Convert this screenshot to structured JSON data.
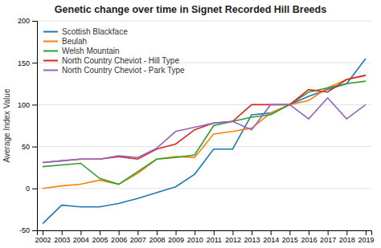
{
  "chart_data": {
    "type": "line",
    "title": "Genetic change over time in Signet Recorded Hill Breeds",
    "ylabel": "Average Index Value",
    "x": [
      2002,
      2003,
      2004,
      2005,
      2006,
      2007,
      2008,
      2009,
      2010,
      2011,
      2012,
      2013,
      2014,
      2015,
      2016,
      2017,
      2018,
      2019
    ],
    "series": [
      {
        "name": "Scottish Blackface",
        "values": [
          -42,
          -20,
          -22,
          -22,
          -18,
          -12,
          -5,
          2,
          17,
          47,
          47,
          88,
          90,
          100,
          110,
          118,
          125,
          155
        ]
      },
      {
        "name": "Beulah",
        "values": [
          0,
          3,
          5,
          10,
          5,
          18,
          35,
          38,
          37,
          65,
          68,
          72,
          90,
          100,
          105,
          120,
          130,
          135
        ]
      },
      {
        "name": "Welsh Mountain",
        "values": [
          26,
          28,
          30,
          12,
          5,
          20,
          35,
          37,
          40,
          75,
          80,
          85,
          88,
          100,
          115,
          120,
          125,
          128
        ]
      },
      {
        "name": "North Country Cheviot - Hill Type",
        "values": [
          31,
          33,
          35,
          35,
          38,
          35,
          47,
          53,
          70,
          78,
          80,
          100,
          100,
          100,
          118,
          115,
          130,
          135
        ]
      },
      {
        "name": "North Country Cheviot - Park Type",
        "values": [
          31,
          33,
          35,
          35,
          39,
          37,
          48,
          68,
          73,
          78,
          80,
          70,
          100,
          100,
          83,
          108,
          83,
          100
        ]
      }
    ],
    "xlim": [
      2001.7,
      2019.3
    ],
    "xticks": [
      2002,
      2003,
      2004,
      2005,
      2006,
      2007,
      2008,
      2009,
      2010,
      2011,
      2012,
      2013,
      2014,
      2015,
      2016,
      2017,
      2018,
      2019
    ],
    "ylim": [
      -50,
      200
    ],
    "yticks": [
      -50,
      0,
      50,
      100,
      150,
      200
    ],
    "grid": true,
    "legend": "upper left"
  }
}
